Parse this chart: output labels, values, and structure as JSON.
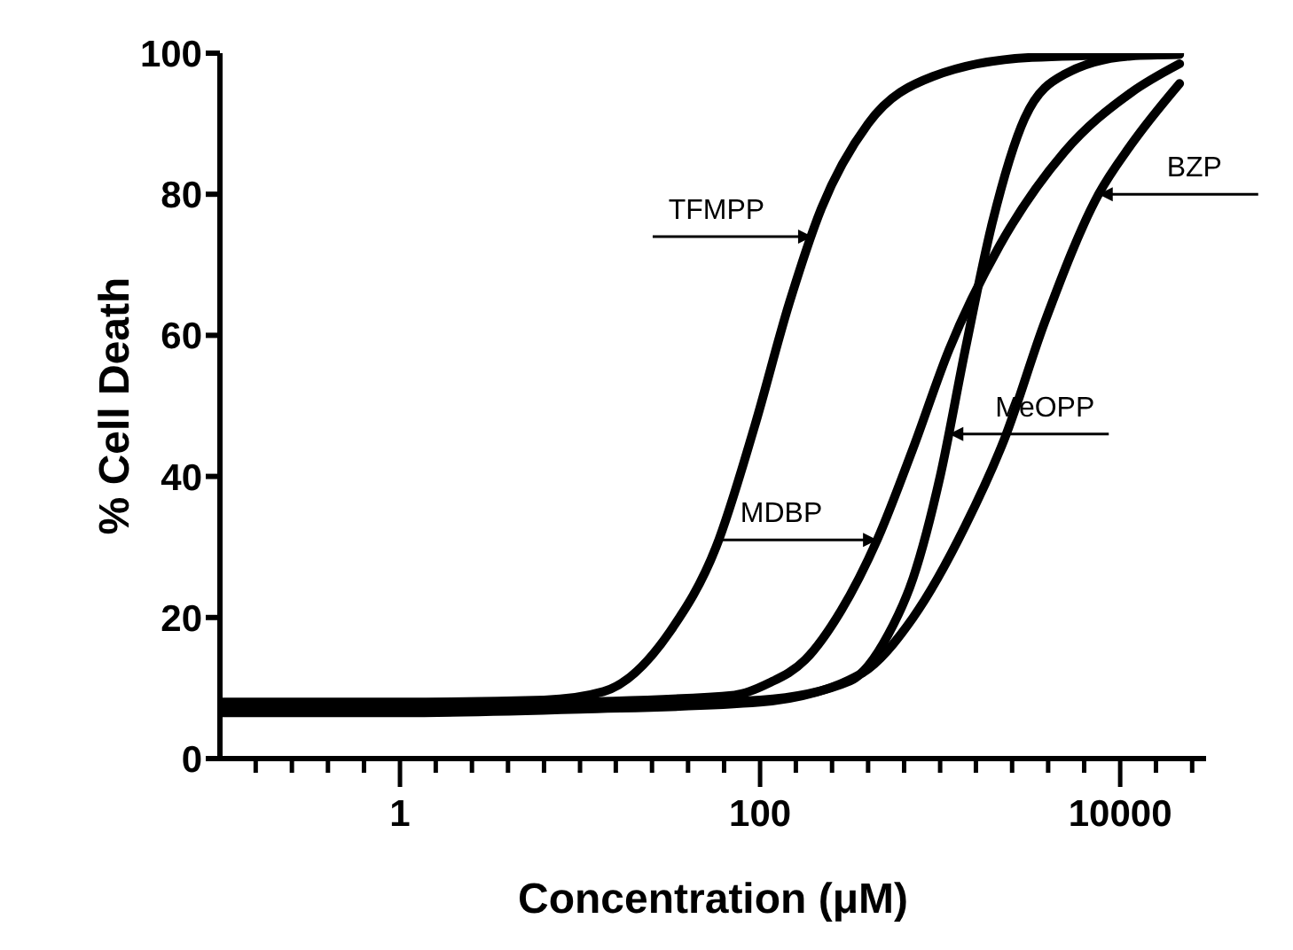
{
  "chart_data": {
    "type": "line",
    "xlabel": "Concentration (μM)",
    "ylabel": "% Cell Death",
    "log": "x",
    "xlim": [
      0.1,
      30000
    ],
    "ylim": [
      0,
      100
    ],
    "yticks": [
      0,
      20,
      40,
      60,
      80,
      100
    ],
    "xticks": [
      {
        "value": 0.158,
        "label": null
      },
      {
        "value": 0.251,
        "label": null
      },
      {
        "value": 0.398,
        "label": null
      },
      {
        "value": 0.631,
        "label": null
      },
      1,
      {
        "value": 1.58,
        "label": null
      },
      {
        "value": 2.51,
        "label": null
      },
      {
        "value": 3.98,
        "label": null
      },
      {
        "value": 6.31,
        "label": null
      },
      {
        "value": 10,
        "label": null
      },
      {
        "value": 15.8,
        "label": null
      },
      {
        "value": 25.1,
        "label": null
      },
      {
        "value": 39.8,
        "label": null
      },
      {
        "value": 63.1,
        "label": null
      },
      100,
      {
        "value": 158,
        "label": null
      },
      {
        "value": 251,
        "label": null
      },
      {
        "value": 398,
        "label": null
      },
      {
        "value": 631,
        "label": null
      },
      {
        "value": 1000,
        "label": null
      },
      {
        "value": 1580,
        "label": null
      },
      {
        "value": 2510,
        "label": null
      },
      {
        "value": 3980,
        "label": null
      },
      {
        "value": 6310,
        "label": null
      },
      10000,
      {
        "value": 15800,
        "label": null
      },
      {
        "value": 25100,
        "label": null
      }
    ],
    "marker": "none",
    "line_style": "solid",
    "series": [
      {
        "color": "#000000",
        "x": [
          0.1,
          1,
          6.3,
          13.5,
          31.6,
          57,
          93,
          145,
          219,
          398,
          912,
          3236,
          21380
        ],
        "values": [
          8,
          8,
          8.3,
          9.5,
          18,
          30,
          47,
          64.5,
          78,
          90,
          96.7,
          99.4,
          99.9
        ]
      },
      {
        "color": "#000000",
        "x": [
          0.1,
          1,
          10,
          72,
          112,
          178,
          282,
          447,
          708,
          1122,
          2138,
          4898,
          11482,
          21380
        ],
        "values": [
          7.5,
          7.5,
          8,
          9,
          10.7,
          14,
          21,
          31,
          44,
          58,
          72.7,
          86,
          94.4,
          98.5
        ]
      },
      {
        "color": "#000000",
        "x": [
          0.1,
          1,
          10,
          100,
          316,
          513,
          708,
          1000,
          1380,
          1950,
          2951,
          4898,
          11482,
          21380
        ],
        "values": [
          7,
          7,
          7.5,
          8.3,
          11,
          17.5,
          25.6,
          40,
          58,
          76,
          90.8,
          97,
          99.6,
          99.8
        ]
      },
      {
        "color": "#000000",
        "x": [
          0.1,
          1,
          10,
          100,
          363,
          708,
          1380,
          2291,
          3802,
          7586,
          11482,
          21380
        ],
        "values": [
          6.5,
          6.5,
          7,
          8,
          12,
          20,
          33,
          45.5,
          61.8,
          80,
          87,
          95.7
        ]
      }
    ],
    "annotations": [
      {
        "text": "TFMPP",
        "x": 195,
        "y": 74
      },
      {
        "text": "MDBP",
        "x": 447,
        "y": 31
      },
      {
        "text": "MeOPP",
        "x": 1122,
        "y": 46
      },
      {
        "text": "BZP",
        "x": 7586,
        "y": 80
      }
    ]
  }
}
